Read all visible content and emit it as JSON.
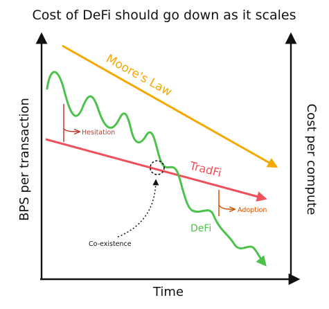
{
  "title": "Cost of DeFi should go down as it scales",
  "axes": {
    "x_label": "Time",
    "y_left_label": "BPS per transaction",
    "y_right_label": "Cost per compute"
  },
  "lines": {
    "moores_law": {
      "label": "Moore's Law",
      "color": "#f5a800"
    },
    "tradfi": {
      "label": "TradFi",
      "color": "#f0505a"
    },
    "defi": {
      "label": "DeFi",
      "color": "#4cc24c"
    }
  },
  "annotations": {
    "hesitation": {
      "label": "Hesitation",
      "color": "#c0392b"
    },
    "adoption": {
      "label": "Adoption",
      "color": "#d35400"
    },
    "coexistence": {
      "label": "Co-existence",
      "color": "#111111"
    }
  }
}
